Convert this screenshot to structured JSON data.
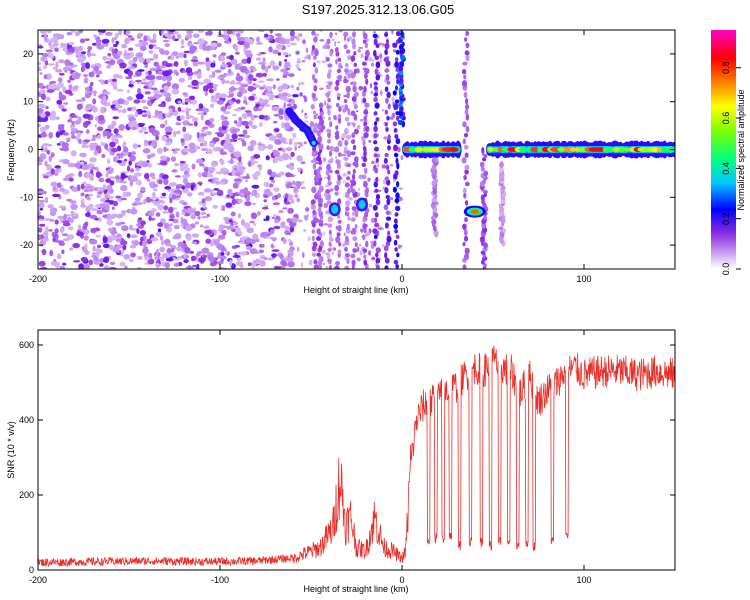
{
  "title": "S197.2025.312.13.06.G05",
  "chart_data": [
    {
      "type": "heatmap",
      "xlabel": "Height of straight line (km)",
      "ylabel": "Frequency (Hz)",
      "xlim": [
        -200,
        150
      ],
      "ylim": [
        -25,
        25
      ],
      "xticks": [
        -200,
        -100,
        0,
        100
      ],
      "yticks": [
        -20,
        -10,
        0,
        10,
        20
      ],
      "colorbar": {
        "label": "Normalized spectral amplitude",
        "range": [
          0,
          0.95
        ],
        "ticks": [
          "0.0",
          "0.2",
          "0.4",
          "0.6",
          "0.8"
        ],
        "tick_values": [
          0.0,
          0.2,
          0.4,
          0.6,
          0.8
        ],
        "colors": [
          "#ffffff",
          "#8a2be2",
          "#0000ff",
          "#00ffff",
          "#00ff00",
          "#ffff00",
          "#ff8000",
          "#ff0000",
          "#ff00ff"
        ]
      },
      "features": [
        {
          "desc": "noise",
          "x": [
            -200,
            -60
          ],
          "y": [
            -25,
            25
          ],
          "amp": 0.1
        },
        {
          "desc": "streak",
          "points": [
            [
              -62,
              8
            ],
            [
              -58,
              6
            ],
            [
              -52,
              4
            ],
            [
              -48,
              1
            ]
          ],
          "amp": 0.35
        },
        {
          "desc": "blob",
          "x": -37,
          "y": -12.5,
          "amp": 0.3
        },
        {
          "desc": "blob",
          "x": -22,
          "y": -11.5,
          "amp": 0.3
        },
        {
          "desc": "band",
          "x": [
            2,
            30
          ],
          "y": 0,
          "amp": 0.8
        },
        {
          "desc": "blob",
          "x": 40,
          "y": -13,
          "amp": 0.7
        },
        {
          "desc": "band",
          "x": [
            48,
            150
          ],
          "y": 0,
          "amp": 0.9
        }
      ]
    },
    {
      "type": "line",
      "xlabel": "Height of straight line (km)",
      "ylabel": "SNR (10 * v/v)",
      "xlim": [
        -200,
        150
      ],
      "ylim": [
        0,
        640
      ],
      "xticks": [
        -200,
        -100,
        0,
        100
      ],
      "yticks": [
        0,
        200,
        400,
        600
      ],
      "color": "#e8302a",
      "x": [
        -200,
        -170,
        -140,
        -110,
        -80,
        -60,
        -45,
        -38,
        -34,
        -31,
        -28,
        -25,
        -20,
        -15,
        -10,
        -5,
        0,
        2,
        5,
        8,
        12,
        15,
        20,
        25,
        30,
        35,
        40,
        45,
        50,
        55,
        60,
        65,
        70,
        75,
        80,
        85,
        90,
        95,
        100,
        110,
        120,
        130,
        140,
        150
      ],
      "y": [
        18,
        20,
        22,
        20,
        22,
        30,
        60,
        110,
        250,
        120,
        140,
        60,
        50,
        140,
        60,
        50,
        30,
        50,
        290,
        400,
        440,
        440,
        470,
        480,
        490,
        520,
        540,
        530,
        560,
        540,
        530,
        470,
        520,
        450,
        480,
        500,
        530,
        540,
        520,
        530,
        530,
        520,
        530,
        520
      ],
      "dropouts": [
        [
          14,
          60
        ],
        [
          18,
          70
        ],
        [
          22,
          70
        ],
        [
          26,
          80
        ],
        [
          31,
          50
        ],
        [
          37,
          60
        ],
        [
          43,
          60
        ],
        [
          48,
          50
        ],
        [
          53,
          60
        ],
        [
          58,
          60
        ],
        [
          63,
          50
        ],
        [
          68,
          60
        ],
        [
          72,
          50
        ],
        [
          82,
          60
        ],
        [
          90,
          70
        ]
      ]
    }
  ]
}
